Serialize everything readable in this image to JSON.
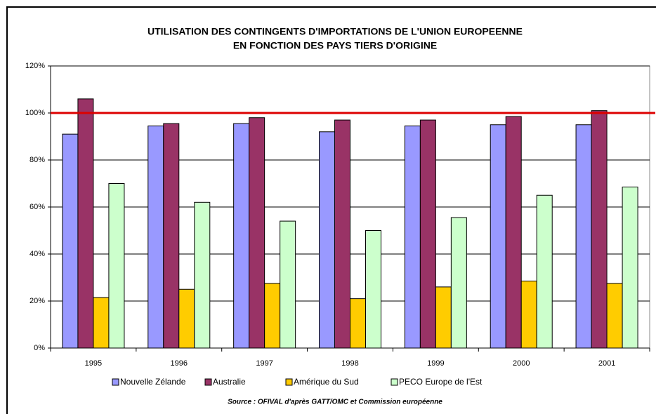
{
  "chart_data": {
    "type": "bar",
    "title": [
      "UTILISATION DES CONTINGENTS D'IMPORTATIONS DE L'UNION EUROPEENNE",
      "EN FONCTION DES PAYS TIERS D'ORIGINE"
    ],
    "categories": [
      "1995",
      "1996",
      "1997",
      "1998",
      "1999",
      "2000",
      "2001"
    ],
    "series": [
      {
        "name": "Nouvelle Zélande",
        "color": "#9999ff",
        "values": [
          91,
          94.5,
          95.5,
          92,
          94.5,
          95,
          95
        ]
      },
      {
        "name": "Australie",
        "color": "#993366",
        "values": [
          106,
          95.5,
          98,
          97,
          97,
          98.5,
          101
        ]
      },
      {
        "name": "Amérique du Sud",
        "color": "#ffcc00",
        "values": [
          21.5,
          25,
          27.5,
          21,
          26,
          28.5,
          27.5
        ]
      },
      {
        "name": "PECO Europe de l'Est",
        "color": "#ccffcc",
        "values": [
          70,
          62,
          54,
          50,
          55.5,
          65,
          68.5
        ]
      }
    ],
    "ylim": [
      0,
      120
    ],
    "yticks": [
      {
        "value": 0,
        "label": "0%"
      },
      {
        "value": 20,
        "label": "20%"
      },
      {
        "value": 40,
        "label": "40%"
      },
      {
        "value": 60,
        "label": "60%"
      },
      {
        "value": 80,
        "label": "80%"
      },
      {
        "value": 100,
        "label": "100%"
      },
      {
        "value": 120,
        "label": "120%"
      }
    ],
    "grid": true,
    "reference_line": {
      "value": 100,
      "color": "#dd0000"
    },
    "legend": "bottom",
    "source": "Source : OFIVAL d'après GATT/OMC et Commission européenne"
  }
}
